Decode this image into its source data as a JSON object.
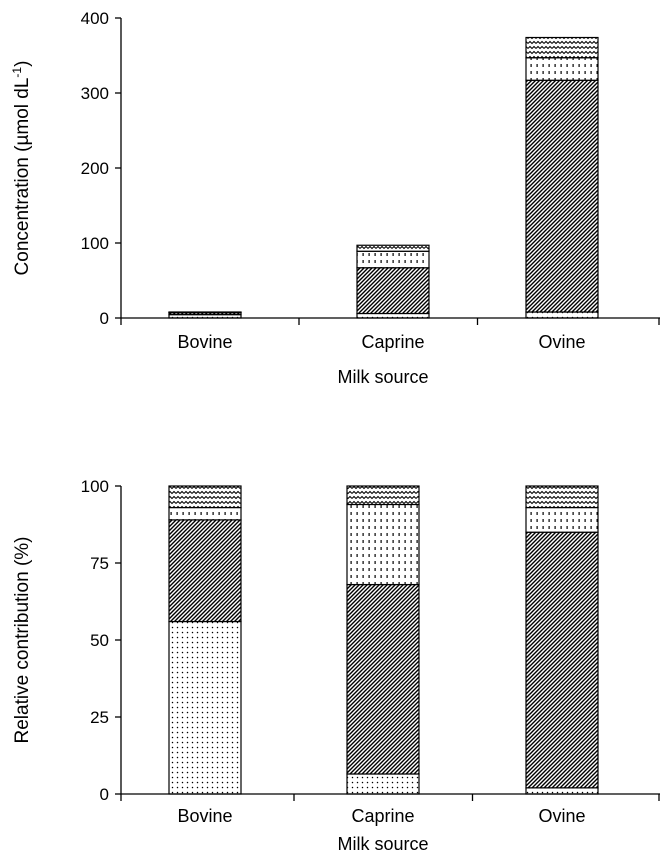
{
  "chart_data": [
    {
      "type": "bar",
      "stacked": true,
      "title": "",
      "xlabel": "Milk source",
      "ylabel": "Concentration (µmol dL",
      "ylabel_sup": "-1",
      "ylabel_close": ")",
      "ylim": [
        0,
        400
      ],
      "yticks": [
        "0",
        "100",
        "200",
        "300",
        "400"
      ],
      "categories": [
        "Bovine",
        "Caprine",
        "Ovine"
      ],
      "series": [
        {
          "pattern": "dots",
          "values": [
            4.5,
            6,
            8
          ]
        },
        {
          "pattern": "diagonal",
          "values": [
            2.5,
            61,
            309
          ]
        },
        {
          "pattern": "dashes",
          "values": [
            0.5,
            22,
            30
          ]
        },
        {
          "pattern": "zigzag",
          "values": [
            0.5,
            8,
            27
          ]
        }
      ]
    },
    {
      "type": "bar",
      "stacked": true,
      "title": "",
      "xlabel": "Milk source",
      "ylabel": "Relative contribution (%)",
      "ylim": [
        0,
        100
      ],
      "yticks": [
        "0",
        "25",
        "50",
        "75",
        "100"
      ],
      "categories": [
        "Bovine",
        "Caprine",
        "Ovine"
      ],
      "series": [
        {
          "pattern": "dots",
          "values": [
            56,
            6.5,
            2
          ]
        },
        {
          "pattern": "diagonal",
          "values": [
            33,
            61.5,
            83
          ]
        },
        {
          "pattern": "dashes",
          "values": [
            4,
            26,
            8
          ]
        },
        {
          "pattern": "zigzag",
          "values": [
            7,
            6,
            7
          ]
        }
      ]
    }
  ]
}
